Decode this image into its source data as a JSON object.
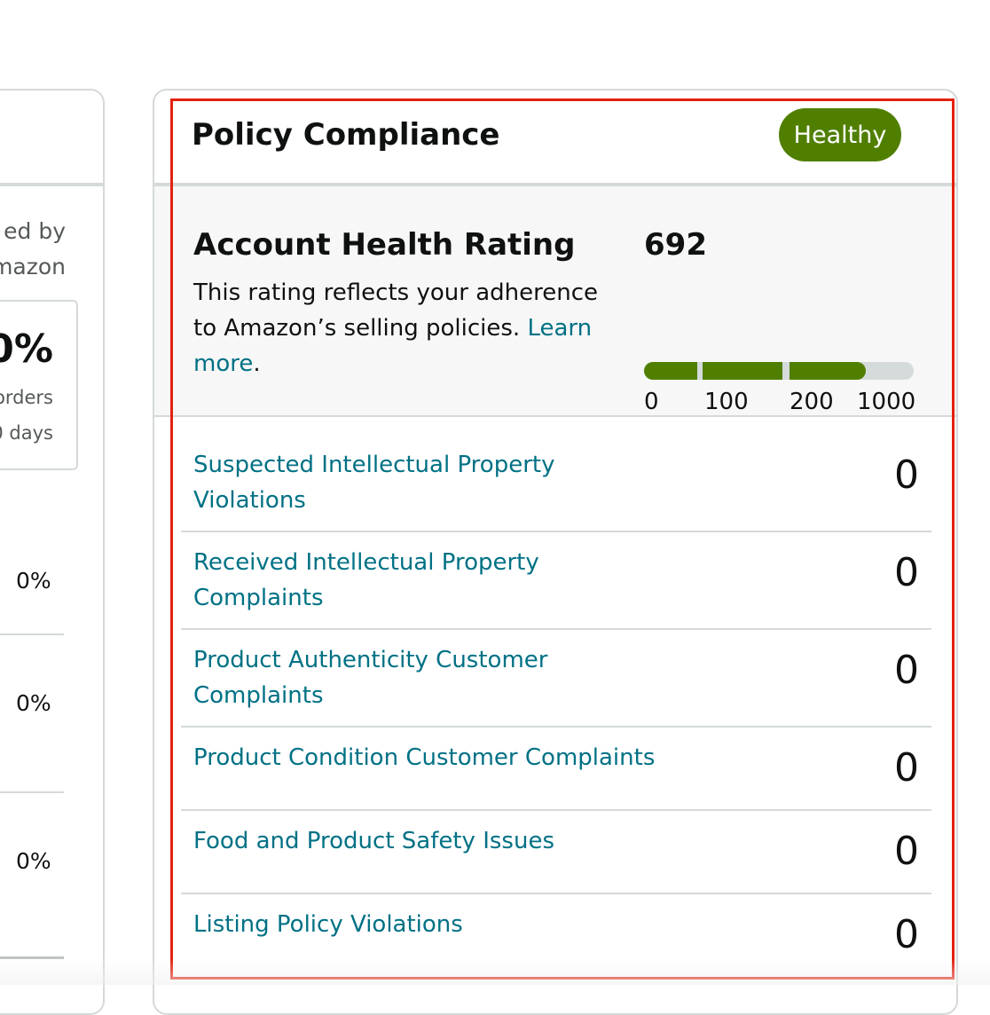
{
  "left_panel": {
    "label_line1": "ed by",
    "label_line2": "mazon",
    "stat_value": "0%",
    "stat_line1": "orders",
    "stat_line2": "0 days",
    "rows": [
      "0%",
      "0%",
      "0%"
    ]
  },
  "policy_compliance": {
    "title": "Policy Compliance",
    "status": "Healthy",
    "status_color": "#507f00",
    "account_health": {
      "title": "Account Health Rating",
      "description": "This rating reflects your adherence to Amazon’s selling policies.",
      "link_text": "Learn more",
      "link_suffix": ".",
      "score": "692",
      "score_value": 692,
      "bar_ticks": [
        "0",
        "100",
        "200",
        "1000"
      ]
    },
    "metrics": [
      {
        "label": "Suspected Intellectual Property Violations",
        "value": "0"
      },
      {
        "label": "Received Intellectual Property Complaints",
        "value": "0"
      },
      {
        "label": "Product Authenticity Customer Complaints",
        "value": "0"
      },
      {
        "label": "Product Condition Customer Complaints",
        "value": "0"
      },
      {
        "label": "Food and Product Safety Issues",
        "value": "0"
      },
      {
        "label": "Listing Policy Violations",
        "value": "0"
      }
    ]
  },
  "colors": {
    "link": "#007185",
    "healthy": "#507f00",
    "highlight_border": "#e3220f"
  }
}
